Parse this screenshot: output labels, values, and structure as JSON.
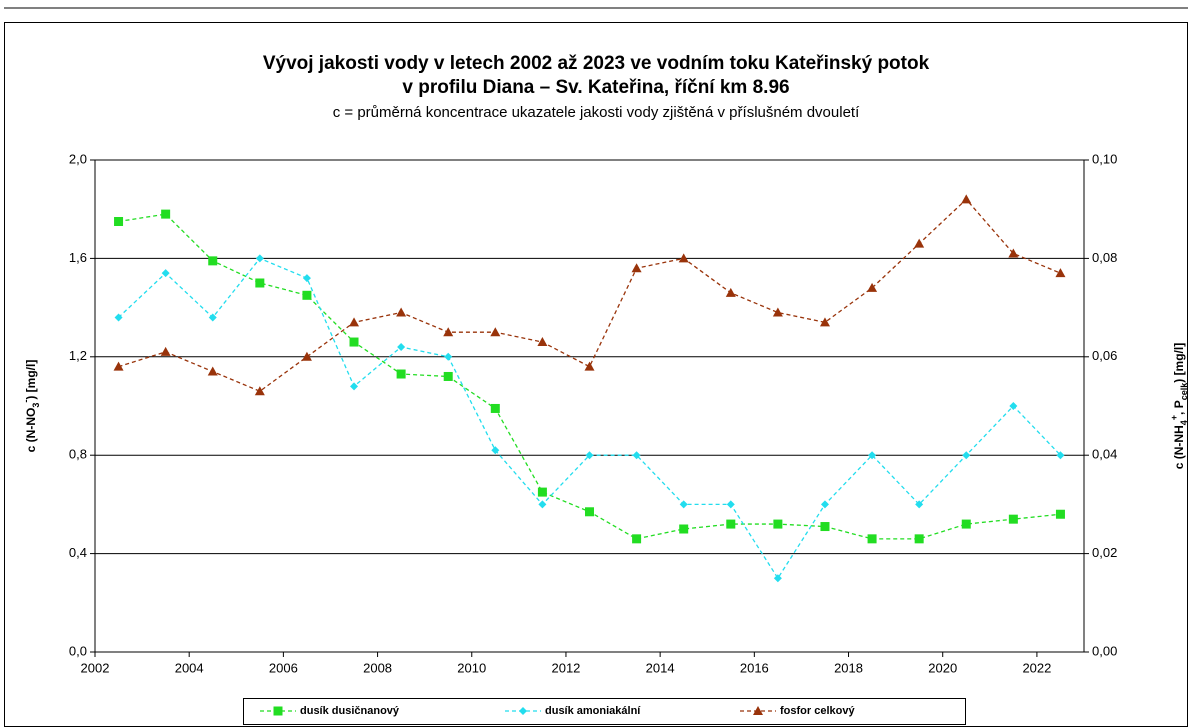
{
  "chart_data": {
    "type": "line",
    "title": [
      "Vývoj jakosti vody v letech 2002 až 2023 ve vodním toku Kateřinský potok",
      "v profilu Diana – Sv. Kateřina, říční km 8.96"
    ],
    "subtitle": "c = průměrná koncentrace ukazatele jakosti vody zjištěná v příslušném dvouletí",
    "ylabel": [
      {
        "text": "c (N-NO",
        "shift": "normal"
      },
      {
        "text": "3",
        "shift": "sub"
      },
      {
        "text": "-",
        "shift": "super"
      },
      {
        "text": ") [mg/l]",
        "shift": "normal"
      }
    ],
    "y2label": [
      {
        "text": "c (N-NH",
        "shift": "normal"
      },
      {
        "text": "4",
        "shift": "sub"
      },
      {
        "text": "+",
        "shift": "super"
      },
      {
        "text": ", P",
        "shift": "normal"
      },
      {
        "text": "celk",
        "shift": "sub"
      },
      {
        "text": ") [mg/l]",
        "shift": "normal"
      }
    ],
    "x": [
      2002.5,
      2003.5,
      2004.5,
      2005.5,
      2006.5,
      2007.5,
      2008.5,
      2009.5,
      2010.5,
      2011.5,
      2012.5,
      2013.5,
      2014.5,
      2015.5,
      2016.5,
      2017.5,
      2018.5,
      2019.5,
      2020.5,
      2021.5,
      2022.5
    ],
    "xlim": [
      2002,
      2023
    ],
    "xticks": [
      2002,
      2004,
      2006,
      2008,
      2010,
      2012,
      2014,
      2016,
      2018,
      2020,
      2022
    ],
    "ylim": [
      0,
      2
    ],
    "yticks": [
      {
        "value": 0,
        "label": "0,0"
      },
      {
        "value": 0.4,
        "label": "0,4"
      },
      {
        "value": 0.8,
        "label": "0,8"
      },
      {
        "value": 1.2,
        "label": "1,2"
      },
      {
        "value": 1.6,
        "label": "1,6"
      },
      {
        "value": 2,
        "label": "2,0"
      }
    ],
    "y2lim": [
      0,
      0.1
    ],
    "y2ticks": [
      {
        "value": 0,
        "label": "0,00"
      },
      {
        "value": 0.02,
        "label": "0,02"
      },
      {
        "value": 0.04,
        "label": "0,04"
      },
      {
        "value": 0.06,
        "label": "0,06"
      },
      {
        "value": 0.08,
        "label": "0,08"
      },
      {
        "value": 0.1,
        "label": "0,10"
      }
    ],
    "grid": true,
    "legend": "bottom",
    "series": [
      {
        "name": "dusík dusičnanový",
        "color": "#22dd22",
        "marker": "square",
        "values": [
          1.75,
          1.78,
          1.59,
          1.5,
          1.45,
          1.26,
          1.13,
          1.12,
          0.99,
          0.65,
          0.57,
          0.46,
          0.5,
          0.52,
          0.52,
          0.51,
          0.46,
          0.46,
          0.52,
          0.54,
          0.56
        ]
      },
      {
        "name": "dusík amoniakální",
        "color": "#22ddee",
        "marker": "diamond",
        "axis": "y2",
        "values": [
          0.068,
          0.077,
          0.068,
          0.08,
          0.076,
          0.054,
          0.062,
          0.06,
          0.041,
          0.03,
          0.04,
          0.04,
          0.03,
          0.03,
          0.015,
          0.03,
          0.04,
          0.03,
          0.04,
          0.05,
          0.04
        ]
      },
      {
        "name": "fosfor celkový",
        "color": "#99330a",
        "marker": "triangle",
        "axis": "y2",
        "values": [
          0.058,
          0.061,
          0.057,
          0.053,
          0.06,
          0.067,
          0.069,
          0.065,
          0.065,
          0.063,
          0.058,
          0.078,
          0.08,
          0.073,
          0.069,
          0.067,
          0.074,
          0.083,
          0.092,
          0.081,
          0.077
        ]
      }
    ]
  }
}
